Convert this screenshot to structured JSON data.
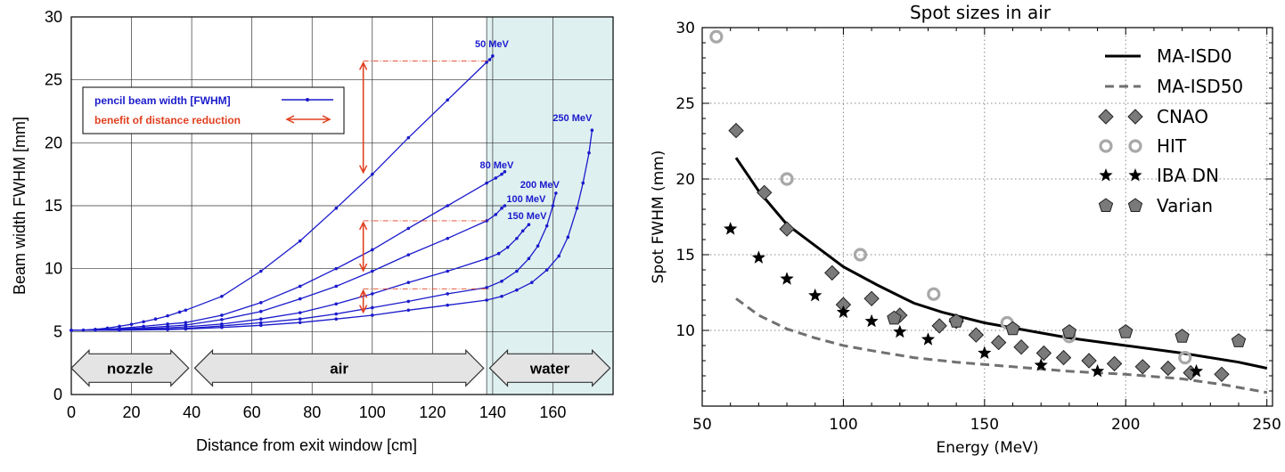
{
  "chart_data": [
    {
      "type": "line",
      "title": "",
      "xlabel": "Distance from exit window  [cm]",
      "ylabel": "Beam width FWHM   [mm]",
      "xlim": [
        0,
        180
      ],
      "ylim": [
        0,
        30
      ],
      "xticks": [
        "0",
        "20",
        "40",
        "60",
        "80",
        "100",
        "120",
        "140",
        "160"
      ],
      "yticks": [
        "0",
        "5",
        "10",
        "15",
        "20",
        "25",
        "30"
      ],
      "grid": true,
      "shaded_region": {
        "from": 138,
        "to": 180,
        "color": "#dff0f0"
      },
      "colors": {
        "line": "#1a1acc",
        "arrow": "#e04020",
        "label": "#1a1acc",
        "region_arrow_fill": "#e4e4e4"
      },
      "legend": {
        "position": "top-left",
        "entries": [
          {
            "label": "pencil beam width [FWHM]",
            "color": "#1a1acc"
          },
          {
            "label": "benefit of distance reduction",
            "color": "#e04020"
          }
        ]
      },
      "regions": [
        {
          "label": "nozzle",
          "from": 0,
          "to": 39
        },
        {
          "label": "air",
          "from": 41,
          "to": 137
        },
        {
          "label": "water",
          "from": 139,
          "to": 179
        }
      ],
      "series": [
        {
          "name": "50 MeV",
          "x": [
            0,
            4,
            8,
            12,
            16,
            20,
            24,
            28,
            32,
            36,
            38,
            50,
            63,
            76,
            88,
            100,
            112,
            125,
            138,
            139,
            140
          ],
          "y": [
            5.1,
            5.12,
            5.18,
            5.28,
            5.42,
            5.58,
            5.78,
            6.0,
            6.25,
            6.55,
            6.7,
            7.8,
            9.8,
            12.2,
            14.8,
            17.5,
            20.4,
            23.4,
            26.4,
            26.6,
            26.9
          ]
        },
        {
          "name": "80 MeV",
          "x": [
            0,
            8,
            16,
            24,
            32,
            38,
            50,
            63,
            76,
            88,
            100,
            112,
            125,
            138,
            141,
            143,
            144
          ],
          "y": [
            5.1,
            5.14,
            5.25,
            5.42,
            5.6,
            5.72,
            6.3,
            7.3,
            8.6,
            10.0,
            11.5,
            13.2,
            15.0,
            16.8,
            17.2,
            17.5,
            17.7
          ]
        },
        {
          "name": "100 MeV",
          "x": [
            0,
            8,
            16,
            24,
            32,
            38,
            50,
            63,
            76,
            88,
            100,
            112,
            125,
            138,
            141,
            143,
            144
          ],
          "y": [
            5.1,
            5.13,
            5.2,
            5.3,
            5.42,
            5.52,
            5.95,
            6.6,
            7.6,
            8.6,
            9.8,
            11.1,
            12.4,
            13.8,
            14.3,
            14.8,
            15.0
          ]
        },
        {
          "name": "150 MeV",
          "x": [
            0,
            16,
            32,
            38,
            50,
            63,
            76,
            88,
            100,
            112,
            125,
            138,
            142,
            145,
            148,
            150,
            152
          ],
          "y": [
            5.1,
            5.15,
            5.3,
            5.38,
            5.6,
            6.0,
            6.5,
            7.2,
            8.0,
            8.9,
            9.8,
            10.8,
            11.2,
            11.7,
            12.4,
            13.0,
            13.5
          ]
        },
        {
          "name": "200 MeV",
          "x": [
            0,
            16,
            32,
            38,
            50,
            63,
            76,
            88,
            100,
            112,
            125,
            138,
            143,
            148,
            152,
            155,
            158,
            160,
            161
          ],
          "y": [
            5.1,
            5.12,
            5.2,
            5.25,
            5.45,
            5.7,
            6.0,
            6.4,
            6.9,
            7.4,
            8.0,
            8.5,
            9.0,
            9.8,
            10.8,
            11.8,
            13.4,
            15.0,
            16.0
          ]
        },
        {
          "name": "250 MeV",
          "x": [
            0,
            16,
            32,
            38,
            50,
            63,
            76,
            88,
            100,
            112,
            125,
            138,
            143,
            148,
            153,
            158,
            162,
            165,
            168,
            170,
            172,
            173
          ],
          "y": [
            5.1,
            5.11,
            5.16,
            5.2,
            5.33,
            5.5,
            5.72,
            6.0,
            6.3,
            6.7,
            7.1,
            7.5,
            7.8,
            8.3,
            8.9,
            9.9,
            11.0,
            12.5,
            14.8,
            16.8,
            19.2,
            21.0
          ]
        }
      ],
      "arrows": [
        {
          "x": 97,
          "y_from": 26.5,
          "y_to": 17.5,
          "guide_to": 139
        },
        {
          "x": 97,
          "y_from": 13.8,
          "y_to": 9.7,
          "guide_to": 139
        },
        {
          "x": 97,
          "y_from": 8.4,
          "y_to": 6.4,
          "guide_to": 139
        }
      ]
    },
    {
      "type": "scatter",
      "title": "Spot sizes in air",
      "xlabel": "Energy (MeV)",
      "ylabel": "Spot FWHM (mm)",
      "xlim": [
        50,
        252
      ],
      "ylim": [
        5,
        30
      ],
      "xticks": [
        "50",
        "100",
        "150",
        "200",
        "250"
      ],
      "yticks": [
        "10",
        "15",
        "20",
        "25",
        "30"
      ],
      "grid": true,
      "legend": {
        "position": "top-right"
      },
      "series": [
        {
          "name": "MA-ISD0",
          "kind": "line",
          "color": "#000000",
          "x": [
            62,
            70,
            80,
            90,
            100,
            112,
            125,
            135,
            150,
            165,
            180,
            200,
            220,
            240,
            250
          ],
          "y": [
            21.4,
            19.2,
            17.0,
            15.6,
            14.2,
            13.0,
            11.8,
            11.2,
            10.5,
            10.0,
            9.5,
            9.0,
            8.5,
            7.9,
            7.5
          ]
        },
        {
          "name": "MA-ISD50",
          "kind": "dashed",
          "color": "#707070",
          "x": [
            62,
            70,
            80,
            90,
            100,
            112,
            125,
            140,
            160,
            180,
            200,
            220,
            235,
            250
          ],
          "y": [
            12.1,
            11.0,
            10.1,
            9.5,
            9.0,
            8.6,
            8.2,
            7.9,
            7.6,
            7.3,
            7.1,
            6.8,
            6.4,
            5.9
          ]
        },
        {
          "name": "CNAO",
          "kind": "diamond",
          "color": "#7a7a7a",
          "x": [
            62,
            72,
            80,
            96,
            100,
            110,
            120,
            134,
            140,
            147,
            155,
            163,
            171,
            178,
            187,
            196,
            206,
            215,
            223,
            234
          ],
          "y": [
            23.2,
            19.1,
            16.7,
            13.8,
            11.7,
            12.1,
            11.0,
            10.3,
            10.6,
            9.7,
            9.2,
            8.9,
            8.5,
            8.2,
            8.0,
            7.8,
            7.6,
            7.5,
            7.2,
            7.1
          ]
        },
        {
          "name": "HIT",
          "kind": "ring",
          "color": "#a8a8a8",
          "x": [
            55,
            80,
            106,
            132,
            158,
            180,
            221
          ],
          "y": [
            29.4,
            20.0,
            15.0,
            12.4,
            10.5,
            9.6,
            8.2
          ]
        },
        {
          "name": "IBA DN",
          "kind": "star",
          "color": "#000000",
          "x": [
            60,
            70,
            80,
            90,
            100,
            110,
            120,
            130,
            150,
            170,
            190,
            225
          ],
          "y": [
            16.7,
            14.8,
            13.4,
            12.3,
            11.2,
            10.6,
            9.9,
            9.4,
            8.5,
            7.7,
            7.3,
            7.3
          ]
        },
        {
          "name": "Varian",
          "kind": "pentagon",
          "color": "#7a7a7a",
          "x": [
            118,
            140,
            160,
            180,
            200,
            220,
            240
          ],
          "y": [
            10.8,
            10.6,
            10.1,
            9.9,
            9.9,
            9.6,
            9.3
          ]
        }
      ]
    }
  ]
}
